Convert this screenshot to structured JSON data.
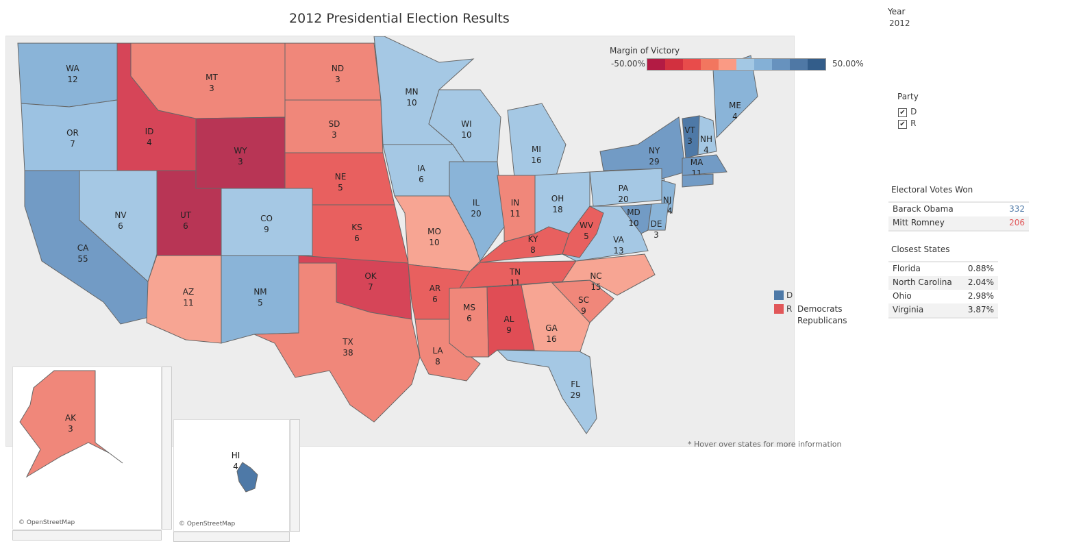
{
  "title": "2012 Presidential Election Results",
  "year": {
    "label": "Year",
    "value": "2012"
  },
  "legend": {
    "title": "Margin of Victory",
    "min": "-50.00%",
    "max": "50.00%",
    "colors": [
      "#b31b44",
      "#d2303f",
      "#e84c4b",
      "#f2765f",
      "#fa9a84",
      "#a3c8e4",
      "#84b0d6",
      "#6792be",
      "#4f78a5",
      "#335d8a"
    ]
  },
  "party_filter": {
    "label": "Party",
    "options": [
      {
        "value": "D",
        "checked": true
      },
      {
        "value": "R",
        "checked": true
      }
    ]
  },
  "party_legend": {
    "items": [
      {
        "code": "D",
        "name": "Democrats",
        "color": "#4e79a7"
      },
      {
        "code": "R",
        "name": "Republicans",
        "color": "#e15759"
      }
    ]
  },
  "electoral": {
    "title": "Electoral Votes Won",
    "rows": [
      {
        "name": "Barack Obama",
        "votes": "332",
        "color": "#4e79a7"
      },
      {
        "name": "Mitt Romney",
        "votes": "206",
        "color": "#e15759"
      }
    ]
  },
  "closest": {
    "title": "Closest States",
    "rows": [
      {
        "name": "Florida",
        "margin": "0.88%"
      },
      {
        "name": "North Carolina",
        "margin": "2.04%"
      },
      {
        "name": "Ohio",
        "margin": "2.98%"
      },
      {
        "name": "Virginia",
        "margin": "3.87%"
      }
    ]
  },
  "footnote": "* Hover over states for more information",
  "attribution": "© OpenStreetMap",
  "states": {
    "WA": {
      "ev": "12",
      "color": "#8ab4d8"
    },
    "OR": {
      "ev": "7",
      "color": "#9cc2e2"
    },
    "CA": {
      "ev": "55",
      "color": "#729bc5"
    },
    "NV": {
      "ev": "6",
      "color": "#a5c8e4"
    },
    "ID": {
      "ev": "4",
      "color": "#d64558"
    },
    "MT": {
      "ev": "3",
      "color": "#f0877a"
    },
    "WY": {
      "ev": "3",
      "color": "#b83555"
    },
    "UT": {
      "ev": "6",
      "color": "#b83555"
    },
    "CO": {
      "ev": "9",
      "color": "#a5c8e4"
    },
    "AZ": {
      "ev": "11",
      "color": "#f7a593"
    },
    "NM": {
      "ev": "5",
      "color": "#8ab4d8"
    },
    "ND": {
      "ev": "3",
      "color": "#f0877a"
    },
    "SD": {
      "ev": "3",
      "color": "#f0877a"
    },
    "NE": {
      "ev": "5",
      "color": "#e8605f"
    },
    "KS": {
      "ev": "6",
      "color": "#e8605f"
    },
    "OK": {
      "ev": "7",
      "color": "#d64558"
    },
    "TX": {
      "ev": "38",
      "color": "#f0877a"
    },
    "MN": {
      "ev": "10",
      "color": "#a5c8e4"
    },
    "IA": {
      "ev": "6",
      "color": "#a5c8e4"
    },
    "MO": {
      "ev": "10",
      "color": "#f7a593"
    },
    "AR": {
      "ev": "6",
      "color": "#e8605f"
    },
    "LA": {
      "ev": "8",
      "color": "#f0877a"
    },
    "WI": {
      "ev": "10",
      "color": "#a5c8e4"
    },
    "IL": {
      "ev": "20",
      "color": "#8ab4d8"
    },
    "MI": {
      "ev": "16",
      "color": "#a5c8e4"
    },
    "IN": {
      "ev": "11",
      "color": "#f0877a"
    },
    "OH": {
      "ev": "18",
      "color": "#a5c8e4"
    },
    "KY": {
      "ev": "8",
      "color": "#e8605f"
    },
    "TN": {
      "ev": "11",
      "color": "#e8605f"
    },
    "MS": {
      "ev": "6",
      "color": "#f0877a"
    },
    "AL": {
      "ev": "9",
      "color": "#e04d55"
    },
    "GA": {
      "ev": "16",
      "color": "#f7a593"
    },
    "FL": {
      "ev": "29",
      "color": "#a5c8e4"
    },
    "SC": {
      "ev": "9",
      "color": "#f0877a"
    },
    "NC": {
      "ev": "15",
      "color": "#f7a593"
    },
    "VA": {
      "ev": "13",
      "color": "#a5c8e4"
    },
    "WV": {
      "ev": "5",
      "color": "#e8605f"
    },
    "PA": {
      "ev": "20",
      "color": "#a5c8e4"
    },
    "NY": {
      "ev": "29",
      "color": "#729bc5"
    },
    "NJ": {
      "ev": "14",
      "color": "#8ab4d8"
    },
    "MD": {
      "ev": "10",
      "color": "#729bc5"
    },
    "DE": {
      "ev": "3",
      "color": "#8ab4d8"
    },
    "ME": {
      "ev": "4",
      "color": "#8ab4d8"
    },
    "VT": {
      "ev": "3",
      "color": "#4e79a7"
    },
    "NH": {
      "ev": "4",
      "color": "#a5c8e4"
    },
    "MA": {
      "ev": "11",
      "color": "#729bc5"
    },
    "CT": {
      "ev": "",
      "color": "#729bc5"
    },
    "AK": {
      "ev": "3",
      "color": "#f0877a"
    },
    "HI": {
      "ev": "4",
      "color": "#4e79a7"
    }
  }
}
